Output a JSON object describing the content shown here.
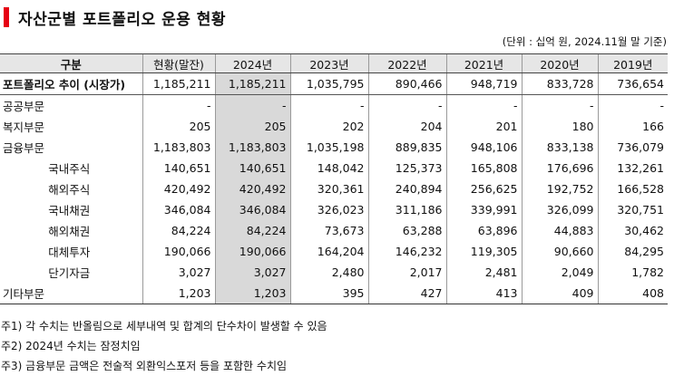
{
  "title": "자산군별 포트폴리오 운용 현황",
  "unit_note": "(단위 : 십억 원, 2024.11월 말 기준)",
  "columns": [
    "구분",
    "현황(말잔)",
    "2024년",
    "2023년",
    "2022년",
    "2021년",
    "2020년",
    "2019년"
  ],
  "rows": [
    {
      "label": "포트폴리오 추이 (시장가)",
      "values": [
        "1,185,211",
        "1,185,211",
        "1,035,795",
        "890,466",
        "948,719",
        "833,728",
        "736,654"
      ]
    },
    {
      "label": "공공부문",
      "values": [
        "-",
        "-",
        "-",
        "-",
        "-",
        "-",
        "-"
      ]
    },
    {
      "label": "복지부문",
      "values": [
        "205",
        "205",
        "202",
        "204",
        "201",
        "180",
        "166"
      ]
    },
    {
      "label": "금융부문",
      "values": [
        "1,183,803",
        "1,183,803",
        "1,035,198",
        "889,835",
        "948,106",
        "833,138",
        "736,079"
      ]
    },
    {
      "label": "국내주식",
      "values": [
        "140,651",
        "140,651",
        "148,042",
        "125,373",
        "165,808",
        "176,696",
        "132,261"
      ]
    },
    {
      "label": "해외주식",
      "values": [
        "420,492",
        "420,492",
        "320,361",
        "240,894",
        "256,625",
        "192,752",
        "166,528"
      ]
    },
    {
      "label": "국내채권",
      "values": [
        "346,084",
        "346,084",
        "326,023",
        "311,186",
        "339,991",
        "326,099",
        "320,751"
      ]
    },
    {
      "label": "해외채권",
      "values": [
        "84,224",
        "84,224",
        "73,673",
        "63,288",
        "63,896",
        "44,883",
        "30,462"
      ]
    },
    {
      "label": "대체투자",
      "values": [
        "190,066",
        "190,066",
        "164,204",
        "146,232",
        "119,305",
        "90,660",
        "84,295"
      ]
    },
    {
      "label": "단기자금",
      "values": [
        "3,027",
        "3,027",
        "2,480",
        "2,017",
        "2,481",
        "2,049",
        "1,782"
      ]
    },
    {
      "label": "기타부문",
      "values": [
        "1,203",
        "1,203",
        "395",
        "427",
        "413",
        "409",
        "408"
      ]
    }
  ],
  "notes": [
    "주1) 각 수치는 반올림으로 세부내역 및 합계의 단수차이 발생할 수 있음",
    "주2) 2024년 수치는 잠정치임",
    "주3) 금융부문 금액은 전술적 외환익스포저 등을 포함한 수치임"
  ],
  "colors": {
    "title_accent": "#e60012",
    "header_bg": "#e6e6e6",
    "highlight_column_bg": "#d9d9d9"
  }
}
